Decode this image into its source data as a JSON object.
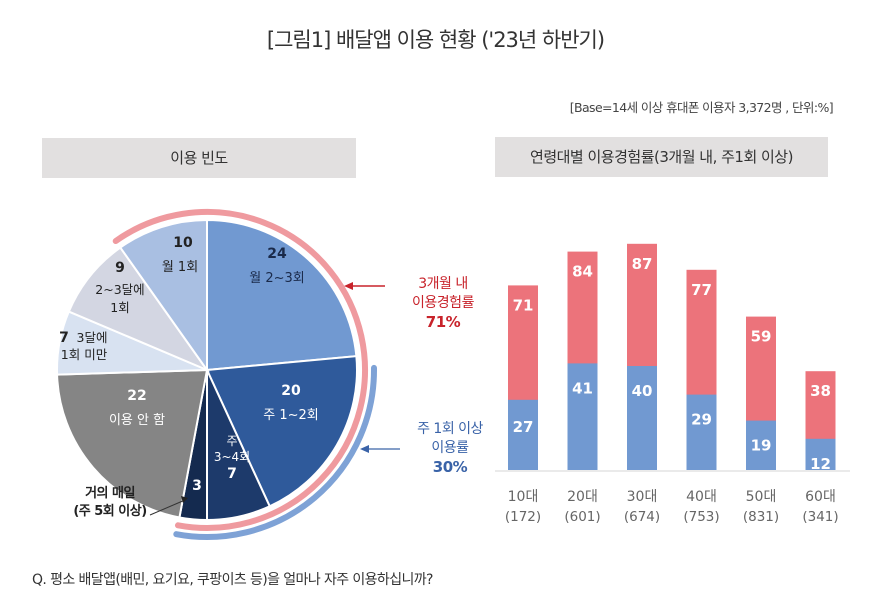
{
  "page": {
    "title": "[그림1] 배달앱 이용 현황 ('23년 하반기)",
    "base_note": "[Base=14세 이상 휴대폰 이용자 3,372명 , 단위:%]",
    "question": "Q. 평소 배달앱(배민, 요기요, 쿠팡이츠 등)을 얼마나 자주 이용하십니까?"
  },
  "colors": {
    "red": "#ec737b",
    "blue": "#7199d1",
    "red_text": "#c8232b",
    "blue_text": "#3a63a8",
    "ring_red": "#ef9a9f",
    "ring_blue": "#7ea2d6"
  },
  "chart_data": [
    {
      "type": "pie",
      "title": "이용 빈도",
      "unit": "%",
      "slices": [
        {
          "label": "월 2~3회",
          "value": 24,
          "color": "#7199d1",
          "text_color": "#1a2a4a"
        },
        {
          "label": "주 1~2회",
          "value": 20,
          "color": "#2f5a9b",
          "text_color": "#ffffff"
        },
        {
          "label": "주 3~4회",
          "value": 7,
          "color": "#1d3a6b",
          "text_color": "#ffffff"
        },
        {
          "label": "거의 매일 (주 5회 이상)",
          "value": 3,
          "color": "#142a4f",
          "text_color": "#ffffff"
        },
        {
          "label": "이용 안 함",
          "value": 22,
          "color": "#858585",
          "text_color": "#ffffff"
        },
        {
          "label": "3달에 1회 미만",
          "value": 7,
          "color": "#d8e2f1",
          "text_color": "#222222"
        },
        {
          "label": "2~3달에 1회",
          "value": 9,
          "color": "#d3d6e2",
          "text_color": "#222222"
        },
        {
          "label": "월 1회",
          "value": 10,
          "color": "#a9bfe2",
          "text_color": "#222222"
        }
      ],
      "annotations": [
        {
          "label_line1": "3개월 내",
          "label_line2": "이용경험률",
          "value": "71%",
          "color": "red"
        },
        {
          "label_line1": "주 1회 이상",
          "label_line2": "이용률",
          "value": "30%",
          "color": "blue"
        }
      ],
      "daily_label": [
        "거의 매일",
        "(주 5회 이상)"
      ]
    },
    {
      "type": "bar",
      "title": "연령대별 이용경험률(3개월 내, 주1회 이상)",
      "categories": [
        "10대",
        "20대",
        "30대",
        "40대",
        "50대",
        "60대"
      ],
      "sample_sizes": [
        "(172)",
        "(601)",
        "(674)",
        "(753)",
        "(831)",
        "(341)"
      ],
      "series": [
        {
          "name": "3개월 내 이용경험률",
          "values": [
            71,
            84,
            87,
            77,
            59,
            38
          ],
          "color": "#ec737b"
        },
        {
          "name": "주 1회 이상 이용률",
          "values": [
            27,
            41,
            40,
            29,
            19,
            12
          ],
          "color": "#7199d1"
        }
      ],
      "ylim": [
        0,
        100
      ],
      "grid": false,
      "xlabel": "",
      "ylabel": ""
    }
  ]
}
